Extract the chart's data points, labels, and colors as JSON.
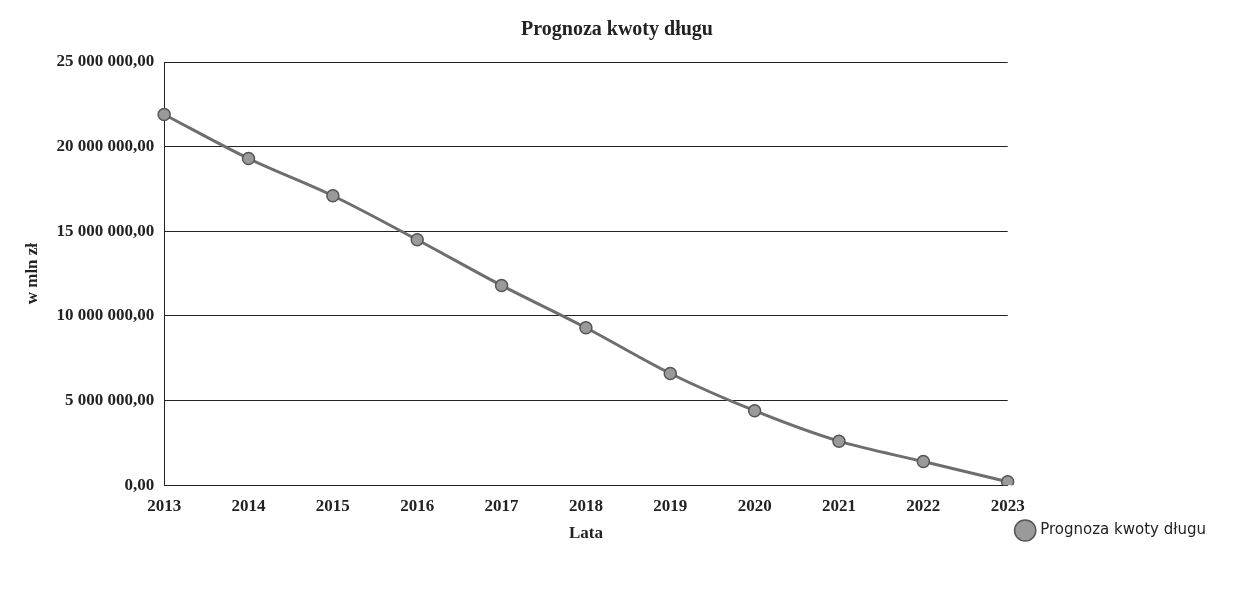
{
  "chart_data": {
    "type": "line",
    "title": "Prognoza kwoty długu",
    "xlabel": "Lata",
    "ylabel": "w mln zł",
    "categories": [
      "2013",
      "2014",
      "2015",
      "2016",
      "2017",
      "2018",
      "2019",
      "2020",
      "2021",
      "2022",
      "2023"
    ],
    "series": [
      {
        "name": "Prognoza kwoty długu",
        "color": "#6e6e6e",
        "values": [
          21900000,
          19300000,
          17100000,
          14500000,
          11800000,
          9300000,
          6600000,
          4400000,
          2600000,
          1400000,
          200000
        ]
      }
    ],
    "ylim": [
      0,
      25000000
    ],
    "yticks": [
      {
        "value": 0,
        "label": "0,00"
      },
      {
        "value": 5000000,
        "label": "5 000 000,00"
      },
      {
        "value": 10000000,
        "label": "10 000 000,00"
      },
      {
        "value": 15000000,
        "label": "15 000 000,00"
      },
      {
        "value": 20000000,
        "label": "20 000 000,00"
      },
      {
        "value": 25000000,
        "label": "25 000 000,00"
      }
    ],
    "grid": "y",
    "legend": "right",
    "marker": "circle",
    "line_style": "solid"
  }
}
